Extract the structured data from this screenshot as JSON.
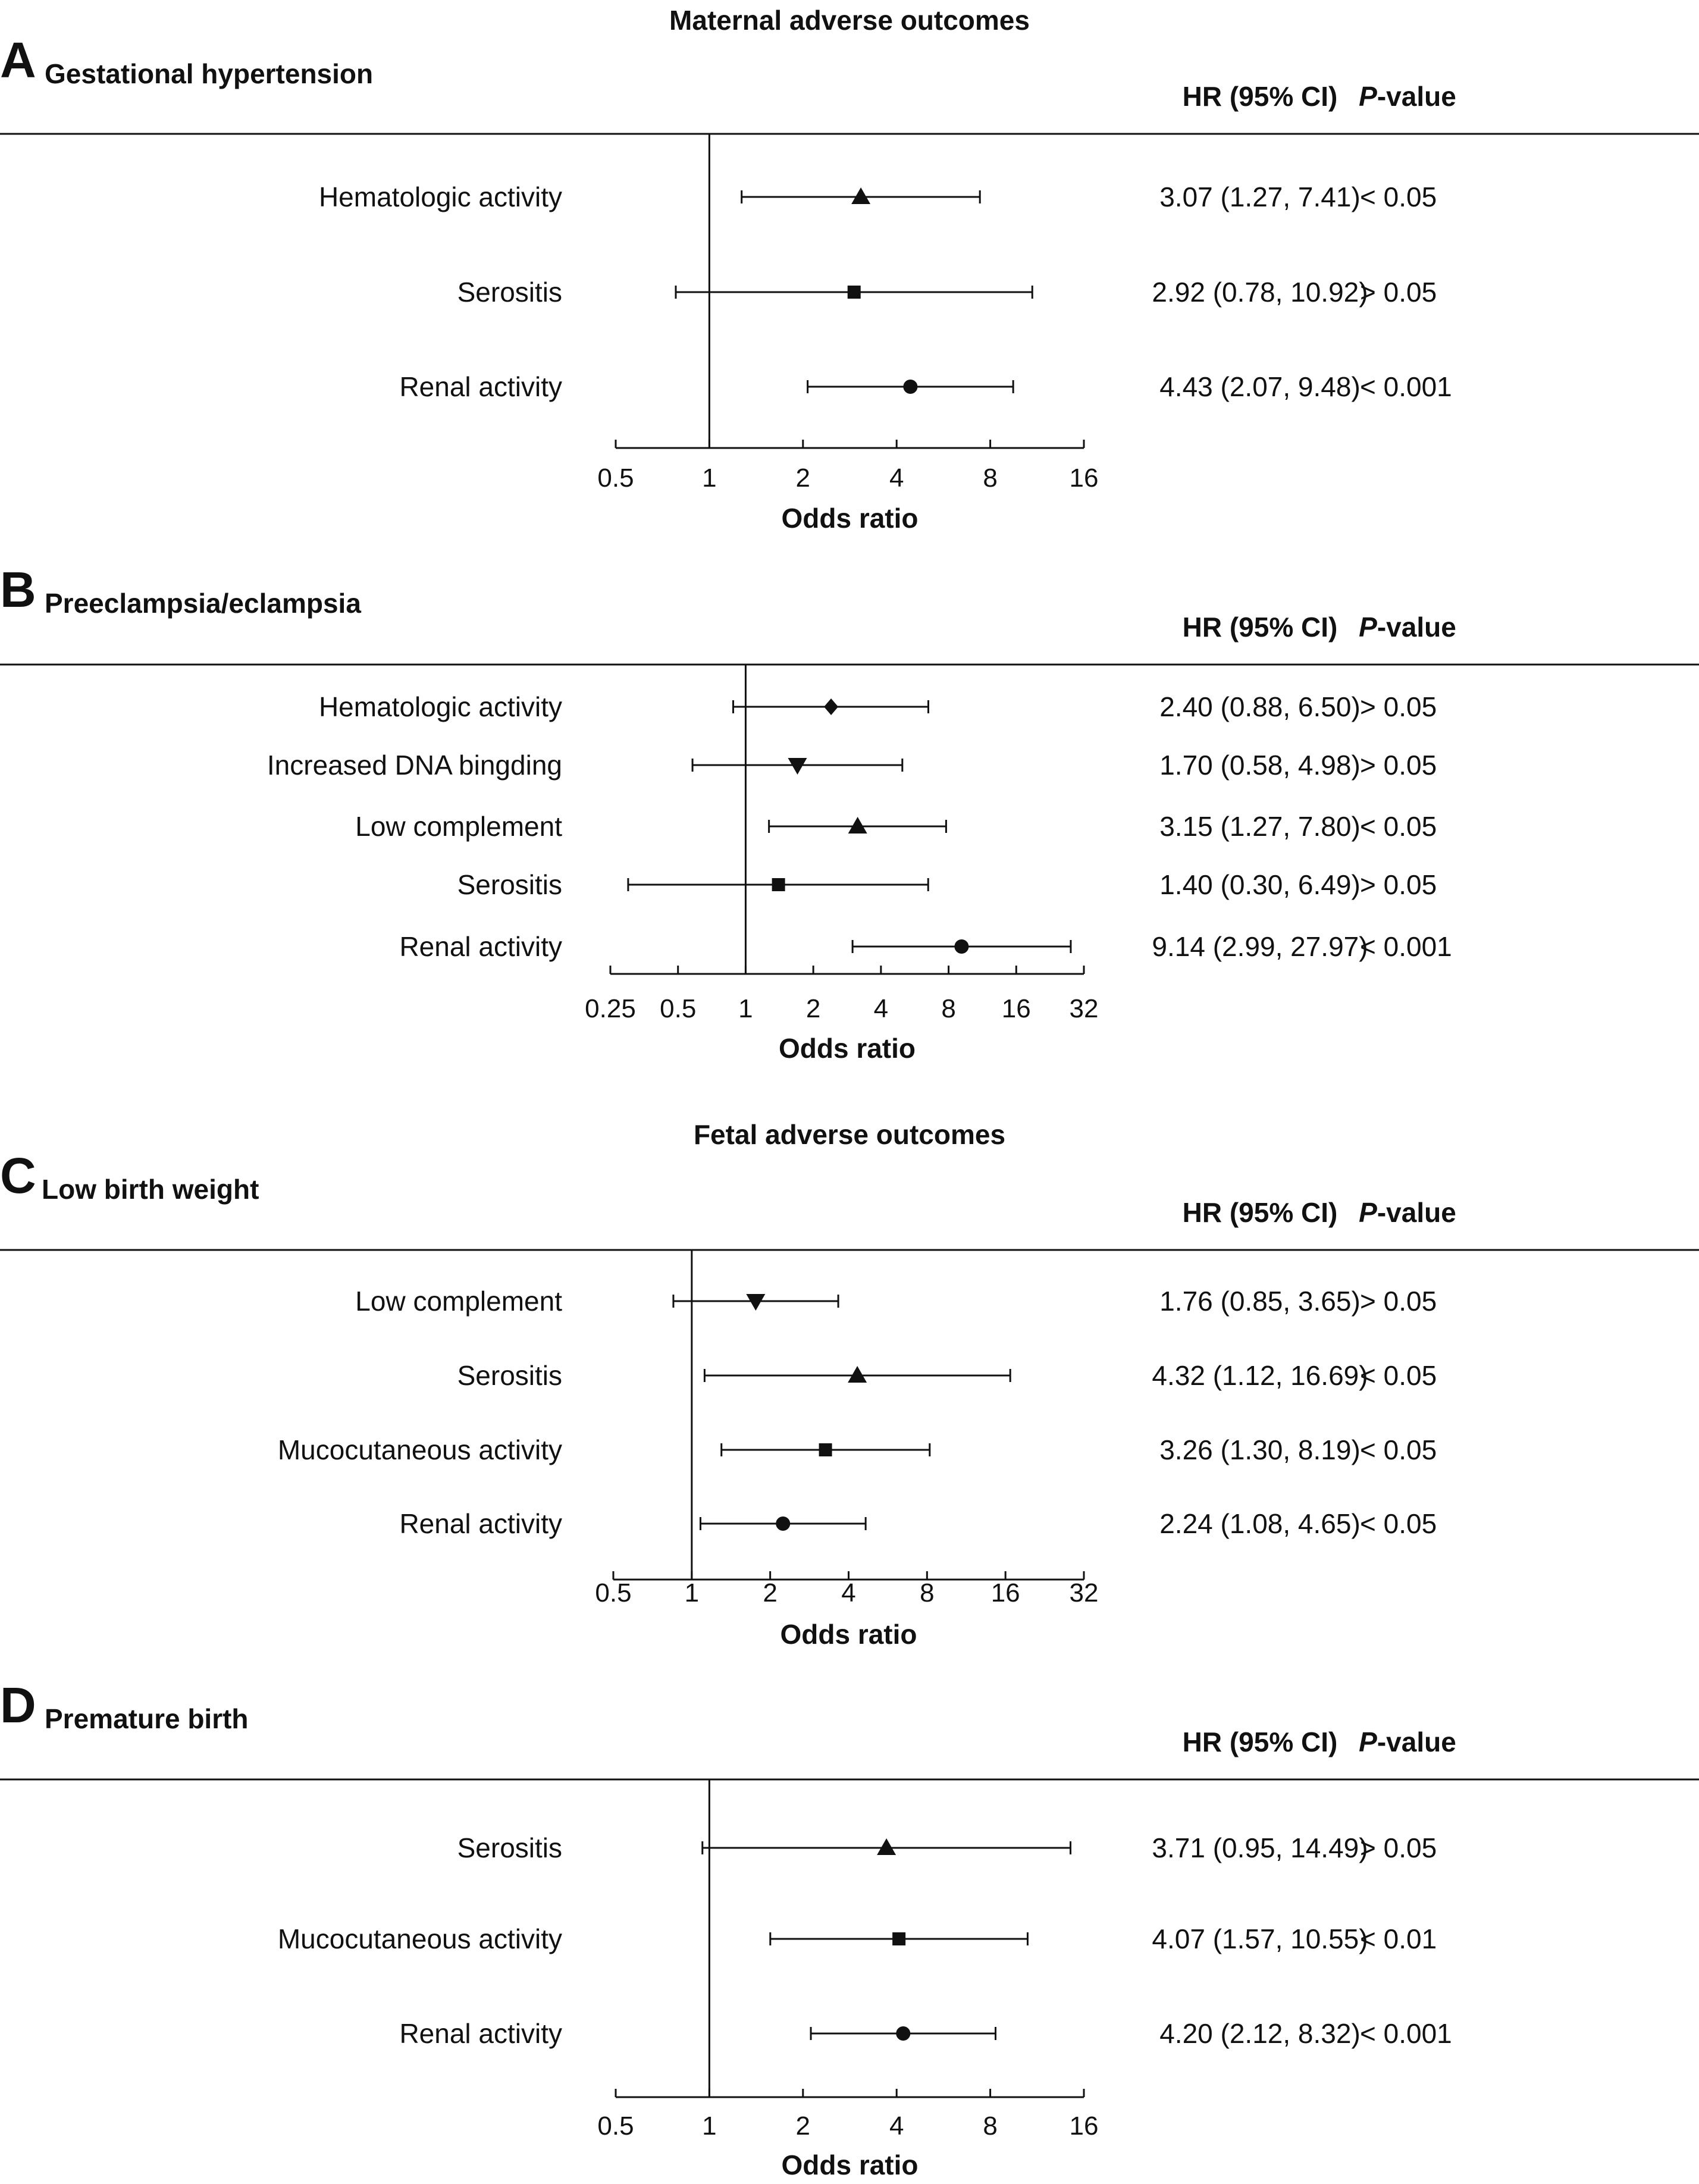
{
  "sections": {
    "maternal": "Maternal adverse outcomes",
    "fetal": "Fetal adverse outcomes"
  },
  "headers": {
    "hr": "HR (95% CI)",
    "p_prefix": "P",
    "p_suffix": "-value"
  },
  "colors": {
    "ink": "#111111"
  },
  "chart_data": [
    {
      "type": "forest",
      "panel": "A",
      "title": "Gestational hypertension",
      "xlabel": "Odds ratio",
      "xscale": "log2",
      "xlim": [
        0.5,
        16
      ],
      "ticks": [
        0.5,
        1,
        2,
        4,
        8,
        16
      ],
      "tick_labels": [
        "0.5",
        "1",
        "2",
        "4",
        "8",
        "16"
      ],
      "reference_line": 1,
      "rows": [
        {
          "label": "Hematologic activity",
          "hr": 3.07,
          "lower": 1.27,
          "upper": 7.41,
          "marker": "triangle-up",
          "ci_text": "3.07 (1.27, 7.41)",
          "p": "< 0.05"
        },
        {
          "label": "Serositis",
          "hr": 2.92,
          "lower": 0.78,
          "upper": 10.92,
          "marker": "square",
          "ci_text": "2.92 (0.78, 10.92)",
          "p": "> 0.05"
        },
        {
          "label": "Renal activity",
          "hr": 4.43,
          "lower": 2.07,
          "upper": 9.48,
          "marker": "circle",
          "ci_text": "4.43 (2.07, 9.48)",
          "p": "< 0.001"
        }
      ]
    },
    {
      "type": "forest",
      "panel": "B",
      "title": "Preeclampsia/eclampsia",
      "xlabel": "Odds ratio",
      "xscale": "log2",
      "xlim": [
        0.25,
        32
      ],
      "ticks": [
        0.25,
        0.5,
        1,
        2,
        4,
        8,
        16,
        32
      ],
      "tick_labels": [
        "0.25",
        "0.5",
        "1",
        "2",
        "4",
        "8",
        "16",
        "32"
      ],
      "reference_line": 1,
      "rows": [
        {
          "label": "Hematologic activity",
          "hr": 2.4,
          "lower": 0.88,
          "upper": 6.5,
          "marker": "diamond",
          "ci_text": "2.40 (0.88, 6.50)",
          "p": "> 0.05"
        },
        {
          "label": "Increased DNA bingding",
          "hr": 1.7,
          "lower": 0.58,
          "upper": 4.98,
          "marker": "triangle-down",
          "ci_text": "1.70 (0.58, 4.98)",
          "p": "> 0.05"
        },
        {
          "label": "Low complement",
          "hr": 3.15,
          "lower": 1.27,
          "upper": 7.8,
          "marker": "triangle-up",
          "ci_text": "3.15 (1.27, 7.80)",
          "p": "< 0.05"
        },
        {
          "label": "Serositis",
          "hr": 1.4,
          "lower": 0.3,
          "upper": 6.49,
          "marker": "square",
          "ci_text": "1.40 (0.30, 6.49)",
          "p": "> 0.05"
        },
        {
          "label": "Renal activity",
          "hr": 9.14,
          "lower": 2.99,
          "upper": 27.97,
          "marker": "circle",
          "ci_text": "9.14 (2.99, 27.97)",
          "p": "< 0.001"
        }
      ]
    },
    {
      "type": "forest",
      "panel": "C",
      "title": "Low birth weight",
      "xlabel": "Odds ratio",
      "xscale": "log2",
      "xlim": [
        0.5,
        32
      ],
      "ticks": [
        0.5,
        1,
        2,
        4,
        8,
        16,
        32
      ],
      "tick_labels": [
        "0.5",
        "1",
        "2",
        "4",
        "8",
        "16",
        "32"
      ],
      "reference_line": 1,
      "rows": [
        {
          "label": "Low complement",
          "hr": 1.76,
          "lower": 0.85,
          "upper": 3.65,
          "marker": "triangle-down",
          "ci_text": "1.76 (0.85, 3.65)",
          "p": "> 0.05"
        },
        {
          "label": "Serositis",
          "hr": 4.32,
          "lower": 1.12,
          "upper": 16.69,
          "marker": "triangle-up",
          "ci_text": "4.32 (1.12, 16.69)",
          "p": "< 0.05"
        },
        {
          "label": "Mucocutaneous activity",
          "hr": 3.26,
          "lower": 1.3,
          "upper": 8.19,
          "marker": "square",
          "ci_text": "3.26 (1.30, 8.19)",
          "p": "< 0.05"
        },
        {
          "label": "Renal activity",
          "hr": 2.24,
          "lower": 1.08,
          "upper": 4.65,
          "marker": "circle",
          "ci_text": "2.24 (1.08, 4.65)",
          "p": "< 0.05"
        }
      ]
    },
    {
      "type": "forest",
      "panel": "D",
      "title": "Premature birth",
      "xlabel": "Odds ratio",
      "xscale": "log2",
      "xlim": [
        0.5,
        16
      ],
      "ticks": [
        0.5,
        1,
        2,
        4,
        8,
        16
      ],
      "tick_labels": [
        "0.5",
        "1",
        "2",
        "4",
        "8",
        "16"
      ],
      "reference_line": 1,
      "rows": [
        {
          "label": "Serositis",
          "hr": 3.71,
          "lower": 0.95,
          "upper": 14.49,
          "marker": "triangle-up",
          "ci_text": "3.71 (0.95, 14.49)",
          "p": "> 0.05"
        },
        {
          "label": "Mucocutaneous activity",
          "hr": 4.07,
          "lower": 1.57,
          "upper": 10.55,
          "marker": "square",
          "ci_text": "4.07 (1.57, 10.55)",
          "p": "< 0.01"
        },
        {
          "label": "Renal activity",
          "hr": 4.2,
          "lower": 2.12,
          "upper": 8.32,
          "marker": "circle",
          "ci_text": "4.20 (2.12, 8.32)",
          "p": "< 0.001"
        }
      ]
    }
  ]
}
